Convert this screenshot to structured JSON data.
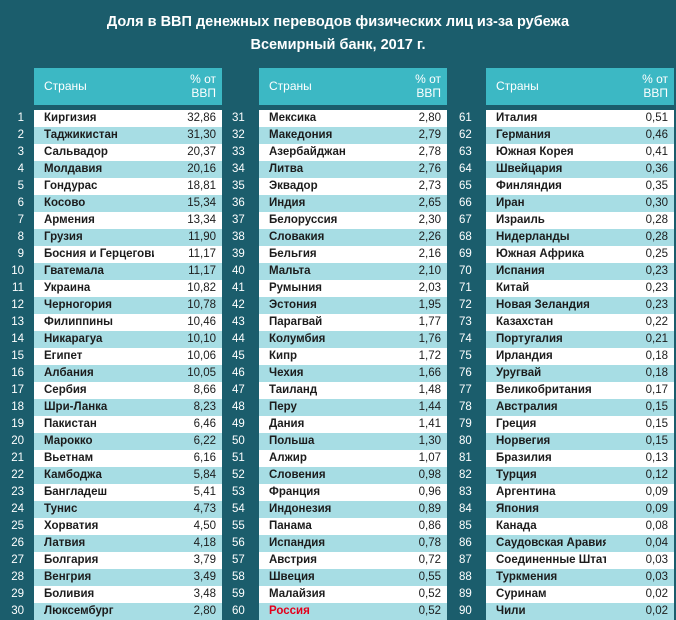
{
  "title": {
    "line1": "Доля в ВВП денежных переводов физических лиц из-за рубежа",
    "line2": "Всемирный банк, 2017 г."
  },
  "header": {
    "country": "Страны",
    "pct_line1": "% от",
    "pct_line2": "ВВП"
  },
  "highlight_color": "#e3001b",
  "columns": [
    [
      {
        "rank": "1",
        "country": "Киргизия",
        "value": "32,86"
      },
      {
        "rank": "2",
        "country": "Таджикистан",
        "value": "31,30"
      },
      {
        "rank": "3",
        "country": "Сальвадор",
        "value": "20,37"
      },
      {
        "rank": "4",
        "country": "Молдавия",
        "value": "20,16"
      },
      {
        "rank": "5",
        "country": "Гондурас",
        "value": "18,81"
      },
      {
        "rank": "6",
        "country": "Косово",
        "value": "15,34"
      },
      {
        "rank": "7",
        "country": "Армения",
        "value": "13,34"
      },
      {
        "rank": "8",
        "country": "Грузия",
        "value": "11,90"
      },
      {
        "rank": "9",
        "country": "Босния и Герцеговина",
        "value": "11,17"
      },
      {
        "rank": "10",
        "country": "Гватемала",
        "value": "11,17"
      },
      {
        "rank": "11",
        "country": "Украина",
        "value": "10,82"
      },
      {
        "rank": "12",
        "country": "Черногория",
        "value": "10,78"
      },
      {
        "rank": "13",
        "country": "Филиппины",
        "value": "10,46"
      },
      {
        "rank": "14",
        "country": "Никарагуа",
        "value": "10,10"
      },
      {
        "rank": "15",
        "country": "Египет",
        "value": "10,06"
      },
      {
        "rank": "16",
        "country": "Албания",
        "value": "10,05"
      },
      {
        "rank": "17",
        "country": "Сербия",
        "value": "8,66"
      },
      {
        "rank": "18",
        "country": "Шри-Ланка",
        "value": "8,23"
      },
      {
        "rank": "19",
        "country": "Пакистан",
        "value": "6,46"
      },
      {
        "rank": "20",
        "country": "Марокко",
        "value": "6,22"
      },
      {
        "rank": "21",
        "country": "Вьетнам",
        "value": "6,16"
      },
      {
        "rank": "22",
        "country": "Камбоджа",
        "value": "5,84"
      },
      {
        "rank": "23",
        "country": "Бангладеш",
        "value": "5,41"
      },
      {
        "rank": "24",
        "country": "Тунис",
        "value": "4,73"
      },
      {
        "rank": "25",
        "country": "Хорватия",
        "value": "4,50"
      },
      {
        "rank": "26",
        "country": "Латвия",
        "value": "4,18"
      },
      {
        "rank": "27",
        "country": "Болгария",
        "value": "3,79"
      },
      {
        "rank": "28",
        "country": "Венгрия",
        "value": "3,49"
      },
      {
        "rank": "29",
        "country": "Боливия",
        "value": "3,48"
      },
      {
        "rank": "30",
        "country": "Люксембург",
        "value": "2,80"
      }
    ],
    [
      {
        "rank": "31",
        "country": "Мексика",
        "value": "2,80"
      },
      {
        "rank": "32",
        "country": "Македония",
        "value": "2,79"
      },
      {
        "rank": "33",
        "country": "Азербайджан",
        "value": "2,78"
      },
      {
        "rank": "34",
        "country": "Литва",
        "value": "2,76"
      },
      {
        "rank": "35",
        "country": "Эквадор",
        "value": "2,73"
      },
      {
        "rank": "36",
        "country": "Индия",
        "value": "2,65"
      },
      {
        "rank": "37",
        "country": "Белоруссия",
        "value": "2,30"
      },
      {
        "rank": "38",
        "country": "Словакия",
        "value": "2,26"
      },
      {
        "rank": "39",
        "country": "Бельгия",
        "value": "2,16"
      },
      {
        "rank": "40",
        "country": "Мальта",
        "value": "2,10"
      },
      {
        "rank": "41",
        "country": "Румыния",
        "value": "2,03"
      },
      {
        "rank": "42",
        "country": "Эстония",
        "value": "1,95"
      },
      {
        "rank": "43",
        "country": "Парагвай",
        "value": "1,77"
      },
      {
        "rank": "44",
        "country": "Колумбия",
        "value": "1,76"
      },
      {
        "rank": "45",
        "country": "Кипр",
        "value": "1,72"
      },
      {
        "rank": "46",
        "country": "Чехия",
        "value": "1,66"
      },
      {
        "rank": "47",
        "country": "Таиланд",
        "value": "1,48"
      },
      {
        "rank": "48",
        "country": "Перу",
        "value": "1,44"
      },
      {
        "rank": "49",
        "country": "Дания",
        "value": "1,41"
      },
      {
        "rank": "50",
        "country": "Польша",
        "value": "1,30"
      },
      {
        "rank": "51",
        "country": "Алжир",
        "value": "1,07"
      },
      {
        "rank": "52",
        "country": "Словения",
        "value": "0,98"
      },
      {
        "rank": "53",
        "country": "Франция",
        "value": "0,96"
      },
      {
        "rank": "54",
        "country": "Индонезия",
        "value": "0,89"
      },
      {
        "rank": "55",
        "country": "Панама",
        "value": "0,86"
      },
      {
        "rank": "56",
        "country": "Испандия",
        "value": "0,78"
      },
      {
        "rank": "57",
        "country": "Австрия",
        "value": "0,72"
      },
      {
        "rank": "58",
        "country": "Швеция",
        "value": "0,55"
      },
      {
        "rank": "59",
        "country": "Малайзия",
        "value": "0,52"
      },
      {
        "rank": "60",
        "country": "Россия",
        "value": "0,52",
        "highlight": true
      }
    ],
    [
      {
        "rank": "61",
        "country": "Италия",
        "value": "0,51"
      },
      {
        "rank": "62",
        "country": "Германия",
        "value": "0,46"
      },
      {
        "rank": "63",
        "country": "Южная Корея",
        "value": "0,41"
      },
      {
        "rank": "64",
        "country": "Швейцария",
        "value": "0,36"
      },
      {
        "rank": "65",
        "country": "Финляндия",
        "value": "0,35"
      },
      {
        "rank": "66",
        "country": "Иран",
        "value": "0,30"
      },
      {
        "rank": "67",
        "country": "Израиль",
        "value": "0,28"
      },
      {
        "rank": "68",
        "country": "Нидерланды",
        "value": "0,28"
      },
      {
        "rank": "69",
        "country": "Южная Африка",
        "value": "0,25"
      },
      {
        "rank": "70",
        "country": "Испания",
        "value": "0,23"
      },
      {
        "rank": "71",
        "country": "Китай",
        "value": "0,23"
      },
      {
        "rank": "72",
        "country": "Новая Зеландия",
        "value": "0,23"
      },
      {
        "rank": "73",
        "country": "Казахстан",
        "value": "0,22"
      },
      {
        "rank": "74",
        "country": "Португалия",
        "value": "0,21"
      },
      {
        "rank": "75",
        "country": "Ирландия",
        "value": "0,18"
      },
      {
        "rank": "76",
        "country": "Уругвай",
        "value": "0,18"
      },
      {
        "rank": "77",
        "country": "Великобритания",
        "value": "0,17"
      },
      {
        "rank": "78",
        "country": "Австралия",
        "value": "0,15"
      },
      {
        "rank": "79",
        "country": "Греция",
        "value": "0,15"
      },
      {
        "rank": "80",
        "country": "Норвегия",
        "value": "0,15"
      },
      {
        "rank": "81",
        "country": "Бразилия",
        "value": "0,13"
      },
      {
        "rank": "82",
        "country": "Турция",
        "value": "0,12"
      },
      {
        "rank": "83",
        "country": "Аргентина",
        "value": "0,09"
      },
      {
        "rank": "84",
        "country": "Япония",
        "value": "0,09"
      },
      {
        "rank": "85",
        "country": "Канада",
        "value": "0,08"
      },
      {
        "rank": "86",
        "country": "Саудовская Аравия",
        "value": "0,04"
      },
      {
        "rank": "87",
        "country": "Соединенные Штаты",
        "value": "0,03"
      },
      {
        "rank": "88",
        "country": "Туркмения",
        "value": "0,03"
      },
      {
        "rank": "89",
        "country": "Суринам",
        "value": "0,02"
      },
      {
        "rank": "90",
        "country": "Чили",
        "value": "0,02"
      }
    ]
  ]
}
